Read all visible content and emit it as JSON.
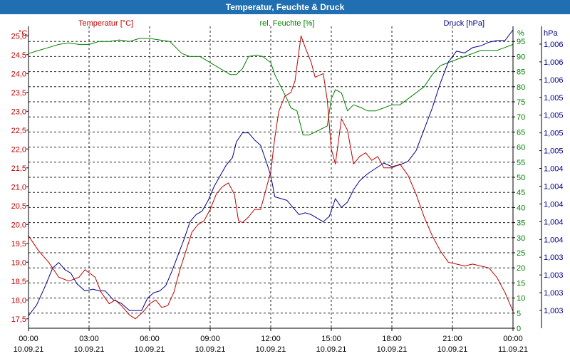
{
  "title": "Temperatur, Feuchte & Druck",
  "colors": {
    "temperature": "#c00000",
    "humidity": "#008000",
    "pressure": "#00008b",
    "title_bg": "#1f6fb2"
  },
  "chart_data": {
    "type": "line",
    "title": "Temperatur, Feuchte & Druck",
    "x_unit": "hours since 10.09.21 00:00",
    "xlim": [
      0,
      24
    ],
    "x_ticks": [
      {
        "t": 0,
        "time": "00:00",
        "date": "10.09.21"
      },
      {
        "t": 3,
        "time": "03:00",
        "date": "10.09.21"
      },
      {
        "t": 6,
        "time": "06:00",
        "date": "10.09.21"
      },
      {
        "t": 9,
        "time": "09:00",
        "date": "10.09.21"
      },
      {
        "t": 12,
        "time": "12:00",
        "date": "10.09.21"
      },
      {
        "t": 15,
        "time": "15:00",
        "date": "10.09.21"
      },
      {
        "t": 18,
        "time": "18:00",
        "date": "10.09.21"
      },
      {
        "t": 21,
        "time": "21:00",
        "date": "10.09.21"
      },
      {
        "t": 24,
        "time": "00:00",
        "date": "11.09.21"
      }
    ],
    "axes": {
      "temperature": {
        "label": "Temperatur [°C]",
        "unit": "°C",
        "range": [
          17.25,
          25.25
        ],
        "ticks": [
          {
            "v": 17.5,
            "label": "17,5"
          },
          {
            "v": 18.0,
            "label": "18,0"
          },
          {
            "v": 18.5,
            "label": "18,5"
          },
          {
            "v": 19.0,
            "label": "19,0"
          },
          {
            "v": 19.5,
            "label": "19,5"
          },
          {
            "v": 20.0,
            "label": "20,0"
          },
          {
            "v": 20.5,
            "label": "20,5"
          },
          {
            "v": 21.0,
            "label": "21,0"
          },
          {
            "v": 21.5,
            "label": "21,5"
          },
          {
            "v": 22.0,
            "label": "22,0"
          },
          {
            "v": 22.5,
            "label": "22,5"
          },
          {
            "v": 23.0,
            "label": "23,0"
          },
          {
            "v": 23.5,
            "label": "23,5"
          },
          {
            "v": 24.0,
            "label": "24,0"
          },
          {
            "v": 24.5,
            "label": "24,5"
          },
          {
            "v": 25.0,
            "label": "25,0"
          }
        ]
      },
      "humidity": {
        "label": "rel. Feuchte [%]",
        "unit": "%",
        "range": [
          0,
          100
        ],
        "ticks": [
          {
            "v": 0,
            "label": "0"
          },
          {
            "v": 5,
            "label": "5"
          },
          {
            "v": 10,
            "label": "10"
          },
          {
            "v": 15,
            "label": "15"
          },
          {
            "v": 20,
            "label": "20"
          },
          {
            "v": 25,
            "label": "25"
          },
          {
            "v": 30,
            "label": "30"
          },
          {
            "v": 35,
            "label": "35"
          },
          {
            "v": 40,
            "label": "40"
          },
          {
            "v": 45,
            "label": "45"
          },
          {
            "v": 50,
            "label": "50"
          },
          {
            "v": 55,
            "label": "55"
          },
          {
            "v": 60,
            "label": "60"
          },
          {
            "v": 65,
            "label": "65"
          },
          {
            "v": 70,
            "label": "70"
          },
          {
            "v": 75,
            "label": "75"
          },
          {
            "v": 80,
            "label": "80"
          },
          {
            "v": 85,
            "label": "85"
          },
          {
            "v": 90,
            "label": "90"
          },
          {
            "v": 95,
            "label": "95"
          }
        ]
      },
      "pressure": {
        "label": "Druck [hPa]",
        "unit": "hPa",
        "range": [
          0,
          17
        ],
        "ticks": [
          {
            "v": 1,
            "label": "1,003"
          },
          {
            "v": 2,
            "label": "1,003"
          },
          {
            "v": 3,
            "label": "1,003"
          },
          {
            "v": 4,
            "label": "1,003"
          },
          {
            "v": 5,
            "label": "1,004"
          },
          {
            "v": 6,
            "label": "1,004"
          },
          {
            "v": 7,
            "label": "1,004"
          },
          {
            "v": 8,
            "label": "1,004"
          },
          {
            "v": 9,
            "label": "1,004"
          },
          {
            "v": 10,
            "label": "1,005"
          },
          {
            "v": 11,
            "label": "1,005"
          },
          {
            "v": 12,
            "label": "1,005"
          },
          {
            "v": 13,
            "label": "1,005"
          },
          {
            "v": 14,
            "label": "1,006"
          },
          {
            "v": 15,
            "label": "1,006"
          },
          {
            "v": 16,
            "label": "1,006"
          }
        ]
      }
    },
    "series": [
      {
        "name": "Temperatur [°C]",
        "axis": "temperature",
        "points": [
          [
            0,
            19.7
          ],
          [
            0.5,
            19.3
          ],
          [
            1,
            19.0
          ],
          [
            1.5,
            18.6
          ],
          [
            2,
            18.5
          ],
          [
            2.5,
            18.6
          ],
          [
            2.8,
            18.8
          ],
          [
            3.3,
            18.6
          ],
          [
            3.6,
            18.2
          ],
          [
            4,
            17.9
          ],
          [
            4.3,
            18.0
          ],
          [
            4.6,
            17.85
          ],
          [
            5.0,
            17.6
          ],
          [
            5.3,
            17.5
          ],
          [
            5.7,
            17.7
          ],
          [
            6.0,
            17.9
          ],
          [
            6.3,
            18.0
          ],
          [
            6.6,
            17.8
          ],
          [
            6.9,
            17.85
          ],
          [
            7.2,
            18.2
          ],
          [
            7.5,
            18.8
          ],
          [
            7.8,
            19.3
          ],
          [
            8.1,
            19.8
          ],
          [
            8.4,
            20.0
          ],
          [
            8.7,
            20.1
          ],
          [
            9.0,
            20.4
          ],
          [
            9.3,
            20.8
          ],
          [
            9.6,
            21.0
          ],
          [
            9.9,
            21.1
          ],
          [
            10.2,
            20.8
          ],
          [
            10.4,
            20.1
          ],
          [
            10.6,
            20.05
          ],
          [
            10.9,
            20.2
          ],
          [
            11.2,
            20.4
          ],
          [
            11.5,
            20.4
          ],
          [
            11.8,
            21.0
          ],
          [
            12.0,
            21.4
          ],
          [
            12.2,
            22.3
          ],
          [
            12.4,
            23.0
          ],
          [
            12.7,
            23.4
          ],
          [
            13.0,
            23.5
          ],
          [
            13.2,
            23.8
          ],
          [
            13.5,
            25.0
          ],
          [
            13.7,
            24.7
          ],
          [
            14.0,
            24.3
          ],
          [
            14.2,
            23.9
          ],
          [
            14.6,
            24.0
          ],
          [
            14.8,
            23.3
          ],
          [
            15.0,
            22.0
          ],
          [
            15.2,
            21.6
          ],
          [
            15.5,
            22.8
          ],
          [
            15.8,
            22.5
          ],
          [
            16.1,
            21.6
          ],
          [
            16.4,
            21.8
          ],
          [
            16.7,
            21.9
          ],
          [
            17.0,
            21.7
          ],
          [
            17.3,
            21.8
          ],
          [
            17.6,
            21.5
          ],
          [
            18.0,
            21.5
          ],
          [
            18.4,
            21.6
          ],
          [
            18.8,
            21.3
          ],
          [
            19.2,
            20.8
          ],
          [
            19.6,
            20.2
          ],
          [
            20.0,
            19.7
          ],
          [
            20.4,
            19.3
          ],
          [
            20.8,
            19.0
          ],
          [
            21.2,
            18.95
          ],
          [
            21.6,
            18.9
          ],
          [
            22.0,
            18.95
          ],
          [
            22.4,
            18.9
          ],
          [
            22.8,
            18.85
          ],
          [
            23.2,
            18.6
          ],
          [
            23.6,
            18.2
          ],
          [
            24.0,
            17.7
          ]
        ]
      },
      {
        "name": "rel. Feuchte [%]",
        "axis": "humidity",
        "points": [
          [
            0,
            91
          ],
          [
            0.5,
            92
          ],
          [
            1,
            93
          ],
          [
            1.5,
            94
          ],
          [
            2,
            94.5
          ],
          [
            2.5,
            94
          ],
          [
            3,
            94
          ],
          [
            3.5,
            95
          ],
          [
            4,
            95
          ],
          [
            4.5,
            95.5
          ],
          [
            5,
            95
          ],
          [
            5.5,
            96
          ],
          [
            6,
            96
          ],
          [
            6.5,
            95.5
          ],
          [
            7,
            95
          ],
          [
            7.3,
            93
          ],
          [
            7.6,
            91
          ],
          [
            8,
            90
          ],
          [
            8.5,
            90
          ],
          [
            9,
            88
          ],
          [
            9.5,
            86
          ],
          [
            10,
            84
          ],
          [
            10.3,
            84
          ],
          [
            10.6,
            86
          ],
          [
            10.9,
            90
          ],
          [
            11.3,
            90.5
          ],
          [
            11.6,
            90
          ],
          [
            12.0,
            88
          ],
          [
            12.2,
            84
          ],
          [
            12.5,
            80
          ],
          [
            12.8,
            76
          ],
          [
            13.0,
            73
          ],
          [
            13.3,
            72
          ],
          [
            13.6,
            64
          ],
          [
            13.9,
            64
          ],
          [
            14.2,
            65
          ],
          [
            14.5,
            66
          ],
          [
            14.8,
            67
          ],
          [
            15.0,
            76
          ],
          [
            15.2,
            79
          ],
          [
            15.5,
            78
          ],
          [
            15.8,
            72
          ],
          [
            16.1,
            74
          ],
          [
            16.5,
            73
          ],
          [
            16.8,
            72
          ],
          [
            17.2,
            72
          ],
          [
            17.6,
            73
          ],
          [
            18.0,
            74
          ],
          [
            18.4,
            74
          ],
          [
            18.8,
            76
          ],
          [
            19.2,
            78
          ],
          [
            19.6,
            80
          ],
          [
            20.0,
            84
          ],
          [
            20.4,
            87
          ],
          [
            20.8,
            88
          ],
          [
            21.2,
            89
          ],
          [
            21.6,
            90
          ],
          [
            22.0,
            91
          ],
          [
            22.4,
            92
          ],
          [
            22.8,
            92
          ],
          [
            23.2,
            92
          ],
          [
            23.6,
            93
          ],
          [
            24.0,
            94
          ]
        ]
      },
      {
        "name": "Druck [hPa]",
        "axis": "pressure",
        "points": [
          [
            0,
            0.7
          ],
          [
            0.4,
            1.3
          ],
          [
            0.8,
            2.3
          ],
          [
            1.2,
            3.4
          ],
          [
            1.5,
            3.7
          ],
          [
            1.8,
            3.3
          ],
          [
            2.1,
            3.1
          ],
          [
            2.4,
            2.5
          ],
          [
            2.8,
            2.1
          ],
          [
            3.2,
            2.2
          ],
          [
            3.5,
            2.1
          ],
          [
            3.8,
            2.1
          ],
          [
            4.2,
            1.6
          ],
          [
            4.6,
            1.4
          ],
          [
            5.0,
            1.0
          ],
          [
            5.3,
            1.0
          ],
          [
            5.6,
            1.0
          ],
          [
            5.9,
            1.7
          ],
          [
            6.2,
            2.0
          ],
          [
            6.5,
            2.1
          ],
          [
            6.8,
            2.4
          ],
          [
            7.1,
            3.2
          ],
          [
            7.4,
            4.1
          ],
          [
            7.7,
            5.0
          ],
          [
            8.0,
            6.0
          ],
          [
            8.3,
            6.4
          ],
          [
            8.6,
            6.6
          ],
          [
            8.9,
            7.2
          ],
          [
            9.2,
            8.0
          ],
          [
            9.5,
            8.6
          ],
          [
            9.8,
            9.2
          ],
          [
            10.1,
            9.6
          ],
          [
            10.3,
            10.5
          ],
          [
            10.6,
            11.0
          ],
          [
            10.9,
            11.0
          ],
          [
            11.2,
            10.6
          ],
          [
            11.5,
            10.3
          ],
          [
            11.8,
            9.3
          ],
          [
            12.0,
            8.6
          ],
          [
            12.2,
            7.4
          ],
          [
            12.5,
            7.3
          ],
          [
            12.8,
            7.2
          ],
          [
            13.1,
            6.8
          ],
          [
            13.4,
            6.4
          ],
          [
            13.7,
            6.5
          ],
          [
            14.0,
            6.4
          ],
          [
            14.3,
            6.2
          ],
          [
            14.6,
            6.0
          ],
          [
            14.9,
            6.3
          ],
          [
            15.2,
            7.3
          ],
          [
            15.5,
            6.8
          ],
          [
            15.8,
            7.1
          ],
          [
            16.1,
            7.8
          ],
          [
            16.4,
            8.3
          ],
          [
            16.8,
            8.7
          ],
          [
            17.2,
            9.0
          ],
          [
            17.6,
            9.3
          ],
          [
            18.0,
            9.1
          ],
          [
            18.4,
            9.2
          ],
          [
            18.8,
            9.4
          ],
          [
            19.2,
            10.0
          ],
          [
            19.6,
            11.2
          ],
          [
            20.0,
            12.4
          ],
          [
            20.4,
            13.8
          ],
          [
            20.8,
            15.0
          ],
          [
            21.2,
            15.6
          ],
          [
            21.6,
            15.5
          ],
          [
            22.0,
            15.8
          ],
          [
            22.4,
            15.9
          ],
          [
            22.8,
            16.1
          ],
          [
            23.2,
            16.2
          ],
          [
            23.6,
            16.2
          ],
          [
            24.0,
            16.8
          ]
        ]
      }
    ]
  }
}
